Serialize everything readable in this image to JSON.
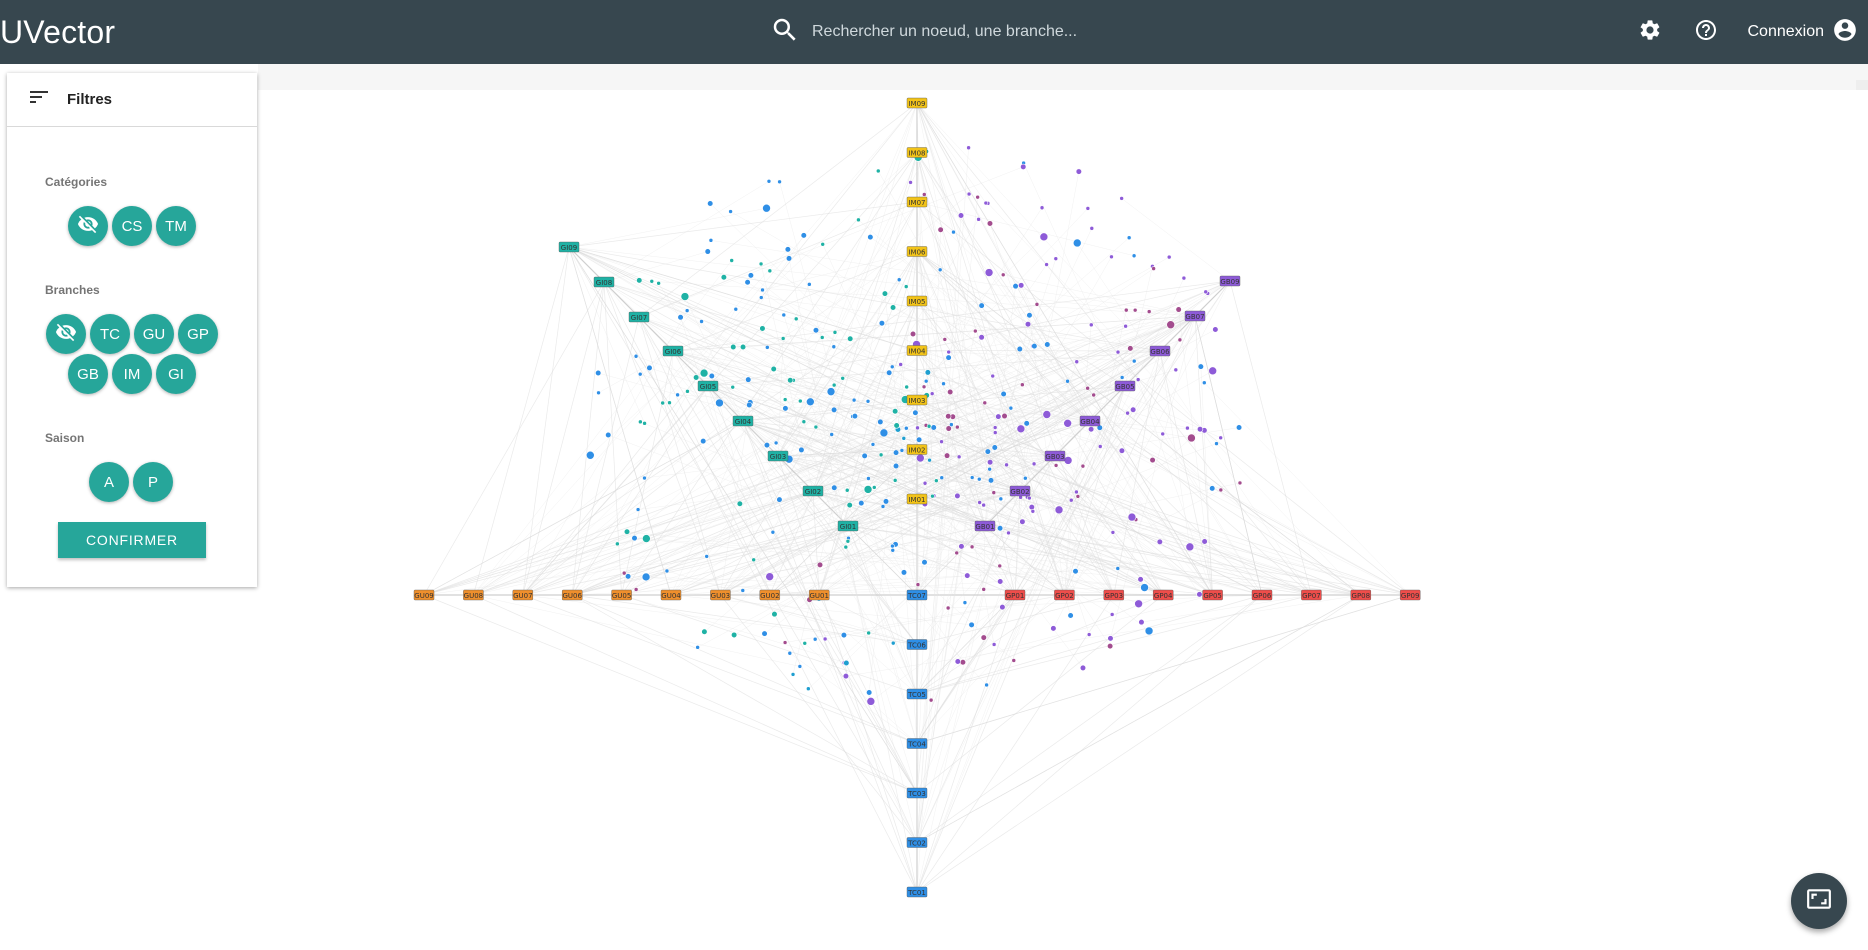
{
  "header": {
    "title": "UVector",
    "search_placeholder": "Rechercher un noeud, une branche...",
    "settings_icon": "gear-icon",
    "help_icon": "help-circle-icon",
    "login_label": "Connexion",
    "account_icon": "account-circle-icon"
  },
  "filters": {
    "title": "Filtres",
    "categories_label": "Catégories",
    "categories": [
      "hidden",
      "CS",
      "TM"
    ],
    "branches_label": "Branches",
    "branches": [
      "hidden",
      "TC",
      "GU",
      "GP",
      "GB",
      "IM",
      "GI"
    ],
    "season_label": "Saison",
    "seasons": [
      "A",
      "P"
    ],
    "confirm_label": "CONFIRMER"
  },
  "colors": {
    "topbar": "#37474f",
    "accent": "#26a69a",
    "IM": "#f2c318",
    "GI": "#1fb2a5",
    "GB": "#8e5bd8",
    "GU": "#ef8f2c",
    "GP": "#ef4d4a",
    "TC": "#2f8fe6"
  },
  "graph": {
    "IM": [
      "IM09",
      "IM08",
      "IM07",
      "IM06",
      "IM05",
      "IM04",
      "IM03",
      "IM02",
      "IM01"
    ],
    "GI": [
      "GI09",
      "GI08",
      "GI07",
      "GI06",
      "GI05",
      "GI04",
      "GI03",
      "GI02",
      "GI01"
    ],
    "GB": [
      "GB09",
      "GB07",
      "GB06",
      "GB05",
      "GB04",
      "GB03",
      "GB02",
      "GB01"
    ],
    "GU": [
      "GU09",
      "GU08",
      "GU07",
      "GU06",
      "GU05",
      "GU04",
      "GU03",
      "GU02",
      "GU01"
    ],
    "GP": [
      "GP01",
      "GP02",
      "GP03",
      "GP04",
      "GP05",
      "GP06",
      "GP07",
      "GP08",
      "GP09"
    ],
    "TC": [
      "TC07",
      "TC06",
      "TC05",
      "TC04",
      "TC03",
      "TC02",
      "TC01"
    ]
  },
  "fab_icon": "fit-screen-icon"
}
